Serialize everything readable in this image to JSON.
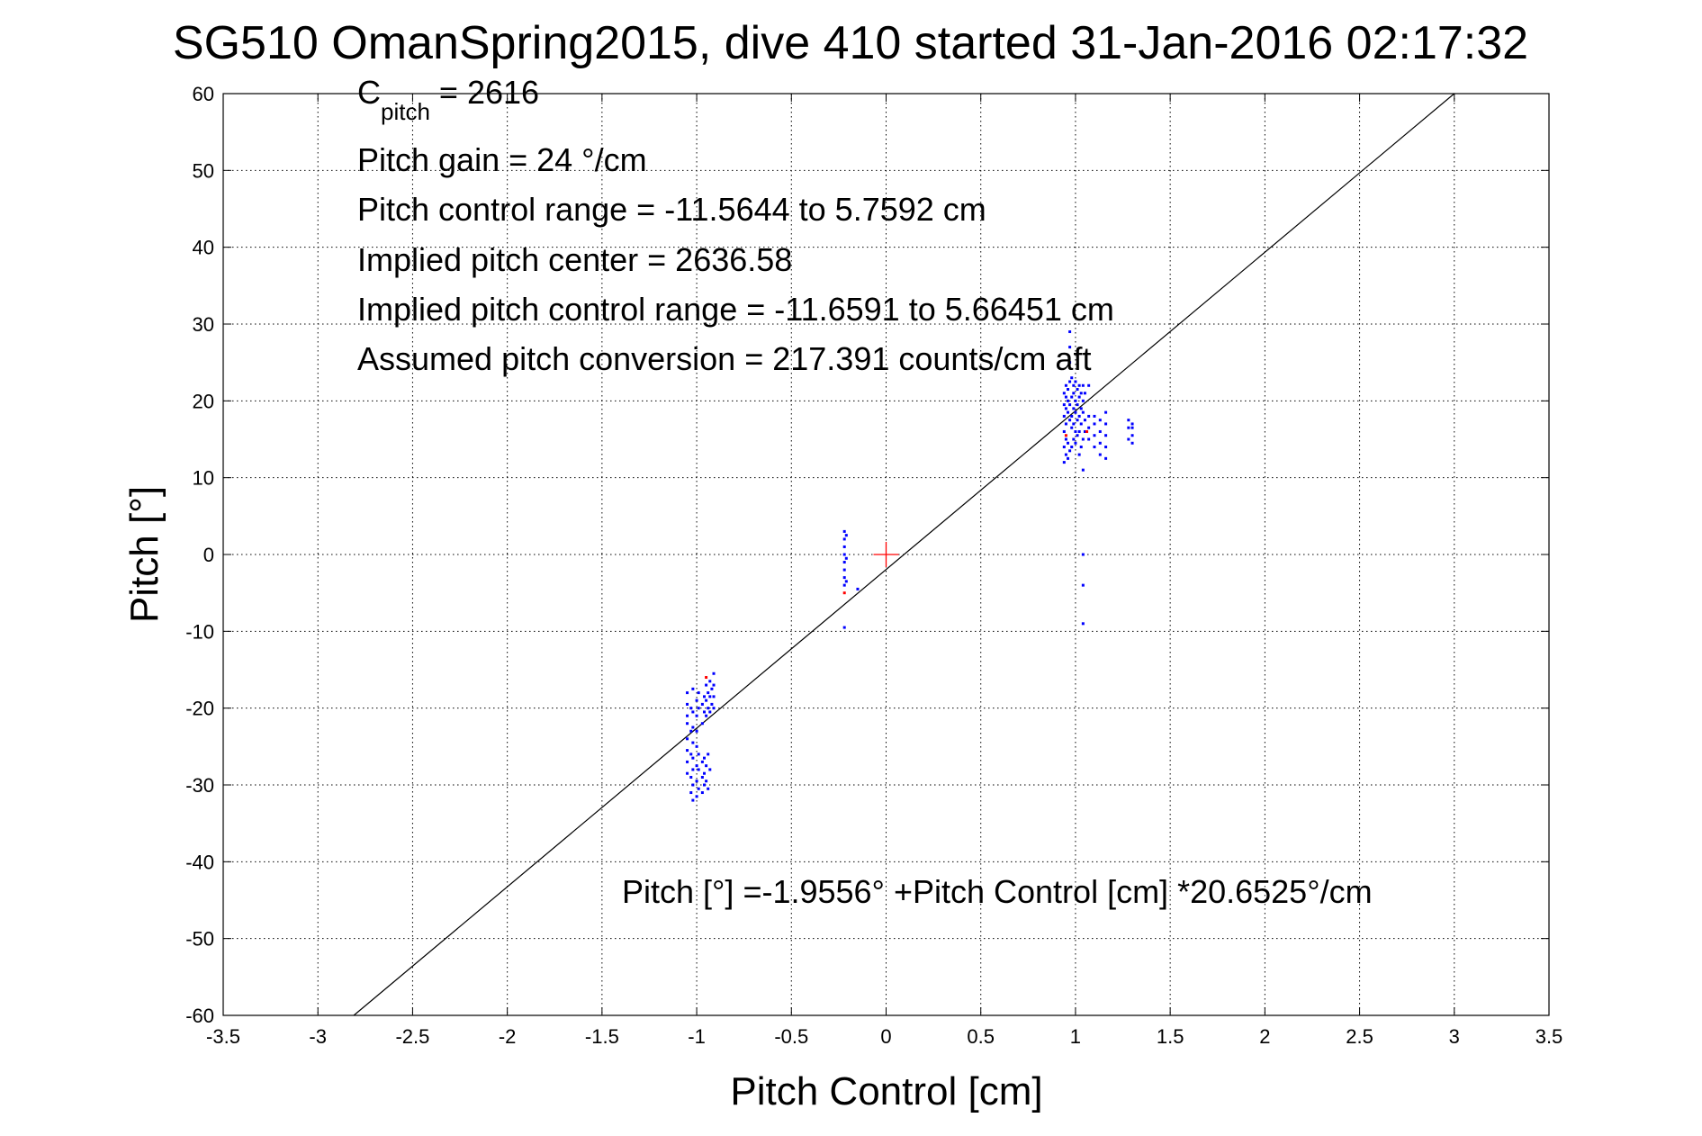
{
  "chart_data": {
    "type": "scatter",
    "title": "SG510 OmanSpring2015, dive 410 started 31-Jan-2016 02:17:32",
    "xlabel": "Pitch Control [cm]",
    "ylabel": "Pitch [°]",
    "xlim": [
      -3.5,
      3.5
    ],
    "ylim": [
      -60,
      60
    ],
    "xticks": [
      -3.5,
      -3,
      -2.5,
      -2,
      -1.5,
      -1,
      -0.5,
      0,
      0.5,
      1,
      1.5,
      2,
      2.5,
      3,
      3.5
    ],
    "xtick_labels": [
      "-3.5",
      "-3",
      "-2.5",
      "-2",
      "-1.5",
      "-1",
      "-0.5",
      "0",
      "0.5",
      "1",
      "1.5",
      "2",
      "2.5",
      "3",
      "3.5"
    ],
    "yticks": [
      60,
      50,
      40,
      30,
      20,
      10,
      0,
      -10,
      -20,
      -30,
      -40,
      -50,
      -60
    ],
    "ytick_labels": [
      "60",
      "50",
      "40",
      "30",
      "20",
      "10",
      "0",
      "-10",
      "-20",
      "-30",
      "-40",
      "-50",
      "-60"
    ],
    "grid": true,
    "annotations": {
      "cpitch_main": "C",
      "cpitch_sub": "pitch",
      "cpitch_value": " = 2616",
      "lines": [
        "Pitch gain = 24 °/cm",
        "Pitch control range = -11.5644 to 5.7592 cm",
        "Implied pitch center = 2636.58",
        "Implied pitch control range = -11.6591 to 5.66451 cm",
        "Assumed pitch conversion = 217.391 counts/cm aft"
      ],
      "fit_equation": "Pitch [°] =-1.9556° +Pitch Control [cm] *20.6525°/cm"
    },
    "fit_line": {
      "intercept": -1.9556,
      "slope": 20.6525,
      "color": "#000000"
    },
    "center_marker": {
      "x": 0,
      "y": 0,
      "color": "#ff0000"
    },
    "series": [
      {
        "color": "#0000ff",
        "points": [
          [
            -1.05,
            -18
          ],
          [
            -1.05,
            -19.5
          ],
          [
            -1.05,
            -21
          ],
          [
            -1.05,
            -22
          ],
          [
            -1.05,
            -24
          ],
          [
            -1.05,
            -25.5
          ],
          [
            -1.05,
            -27
          ],
          [
            -1.05,
            -28.5
          ],
          [
            -1.03,
            -20
          ],
          [
            -1.03,
            -23
          ],
          [
            -1.03,
            -26
          ],
          [
            -1.03,
            -29
          ],
          [
            -1.03,
            -31
          ],
          [
            -1.02,
            -17.5
          ],
          [
            -1.02,
            -20.5
          ],
          [
            -1.02,
            -22.5
          ],
          [
            -1.02,
            -24.5
          ],
          [
            -1.02,
            -26.5
          ],
          [
            -1.02,
            -28
          ],
          [
            -1.02,
            -30
          ],
          [
            -1.02,
            -32
          ],
          [
            -1.0,
            -19
          ],
          [
            -1.0,
            -21
          ],
          [
            -1.0,
            -23
          ],
          [
            -1.0,
            -25
          ],
          [
            -1.0,
            -27.5
          ],
          [
            -1.0,
            -29.5
          ],
          [
            -1.0,
            -31.5
          ],
          [
            -0.99,
            -18
          ],
          [
            -0.99,
            -20
          ],
          [
            -0.99,
            -26
          ],
          [
            -0.99,
            -28
          ],
          [
            -0.99,
            -30.5
          ],
          [
            -0.97,
            -19.5
          ],
          [
            -0.97,
            -22
          ],
          [
            -0.97,
            -27
          ],
          [
            -0.97,
            -29
          ],
          [
            -0.97,
            -31
          ],
          [
            -0.96,
            -18.5
          ],
          [
            -0.96,
            -20.5
          ],
          [
            -0.96,
            -26.5
          ],
          [
            -0.96,
            -28.5
          ],
          [
            -0.96,
            -30
          ],
          [
            -0.95,
            -17
          ],
          [
            -0.95,
            -19
          ],
          [
            -0.95,
            -21
          ],
          [
            -0.95,
            -27.5
          ],
          [
            -0.95,
            -29.5
          ],
          [
            -0.94,
            -18
          ],
          [
            -0.94,
            -20
          ],
          [
            -0.94,
            -26
          ],
          [
            -0.94,
            -30.5
          ],
          [
            -0.93,
            -16.5
          ],
          [
            -0.93,
            -18.5
          ],
          [
            -0.93,
            -20.5
          ],
          [
            -0.93,
            -28
          ],
          [
            -0.92,
            -17.5
          ],
          [
            -0.92,
            -19.5
          ],
          [
            -0.91,
            -15.5
          ],
          [
            -0.91,
            -17
          ],
          [
            -0.91,
            -18.5
          ],
          [
            -0.91,
            -20
          ],
          [
            -0.22,
            3
          ],
          [
            -0.22,
            2
          ],
          [
            -0.22,
            1
          ],
          [
            -0.22,
            0
          ],
          [
            -0.22,
            -1
          ],
          [
            -0.22,
            -2
          ],
          [
            -0.22,
            -3
          ],
          [
            -0.22,
            -4
          ],
          [
            -0.22,
            -9.5
          ],
          [
            -0.21,
            2.5
          ],
          [
            -0.21,
            -0.5
          ],
          [
            -0.21,
            -3.5
          ],
          [
            -0.15,
            -4.5
          ],
          [
            0.94,
            12
          ],
          [
            0.94,
            14
          ],
          [
            0.94,
            16
          ],
          [
            0.94,
            18
          ],
          [
            0.94,
            19.5
          ],
          [
            0.94,
            21
          ],
          [
            0.95,
            13
          ],
          [
            0.95,
            15
          ],
          [
            0.95,
            17
          ],
          [
            0.95,
            19
          ],
          [
            0.95,
            20.5
          ],
          [
            0.95,
            22
          ],
          [
            0.96,
            12.5
          ],
          [
            0.96,
            14.5
          ],
          [
            0.96,
            18.5
          ],
          [
            0.96,
            20
          ],
          [
            0.96,
            21.5
          ],
          [
            0.97,
            13.5
          ],
          [
            0.97,
            17.5
          ],
          [
            0.97,
            19.5
          ],
          [
            0.97,
            22.5
          ],
          [
            0.97,
            25
          ],
          [
            0.97,
            27
          ],
          [
            0.97,
            29
          ],
          [
            0.98,
            14
          ],
          [
            0.98,
            16.5
          ],
          [
            0.98,
            18
          ],
          [
            0.98,
            20.5
          ],
          [
            0.98,
            23
          ],
          [
            0.99,
            15
          ],
          [
            0.99,
            17
          ],
          [
            0.99,
            19
          ],
          [
            0.99,
            21
          ],
          [
            0.99,
            22
          ],
          [
            1.0,
            14.5
          ],
          [
            1.0,
            16
          ],
          [
            1.0,
            18.5
          ],
          [
            1.0,
            20
          ],
          [
            1.0,
            22.5
          ],
          [
            1.01,
            15.5
          ],
          [
            1.01,
            17.5
          ],
          [
            1.01,
            19.5
          ],
          [
            1.01,
            21.5
          ],
          [
            1.02,
            13
          ],
          [
            1.02,
            16
          ],
          [
            1.02,
            18
          ],
          [
            1.02,
            20.5
          ],
          [
            1.02,
            22
          ],
          [
            1.03,
            14
          ],
          [
            1.03,
            17
          ],
          [
            1.03,
            19
          ],
          [
            1.03,
            21
          ],
          [
            1.04,
            11
          ],
          [
            1.04,
            15
          ],
          [
            1.04,
            18.5
          ],
          [
            1.04,
            20
          ],
          [
            1.04,
            22
          ],
          [
            1.04,
            0
          ],
          [
            1.04,
            -4
          ],
          [
            1.04,
            -9
          ],
          [
            1.05,
            16
          ],
          [
            1.05,
            17.5
          ],
          [
            1.05,
            21
          ],
          [
            1.07,
            15
          ],
          [
            1.07,
            16.5
          ],
          [
            1.07,
            18
          ],
          [
            1.07,
            22
          ],
          [
            1.1,
            14
          ],
          [
            1.1,
            15.5
          ],
          [
            1.1,
            17
          ],
          [
            1.1,
            18
          ],
          [
            1.13,
            13
          ],
          [
            1.13,
            14.5
          ],
          [
            1.13,
            16
          ],
          [
            1.13,
            17.5
          ],
          [
            1.16,
            12.5
          ],
          [
            1.16,
            14
          ],
          [
            1.16,
            15.5
          ],
          [
            1.16,
            17
          ],
          [
            1.16,
            18.5
          ],
          [
            1.28,
            15
          ],
          [
            1.28,
            16.5
          ],
          [
            1.28,
            17.5
          ],
          [
            1.3,
            14.5
          ],
          [
            1.3,
            15.5
          ],
          [
            1.3,
            16.5
          ],
          [
            1.3,
            17
          ]
        ]
      },
      {
        "color": "#ff0000",
        "points": [
          [
            -0.95,
            -16
          ],
          [
            -0.22,
            -5
          ],
          [
            0.95,
            15.5
          ],
          [
            1.06,
            16
          ]
        ]
      }
    ]
  }
}
